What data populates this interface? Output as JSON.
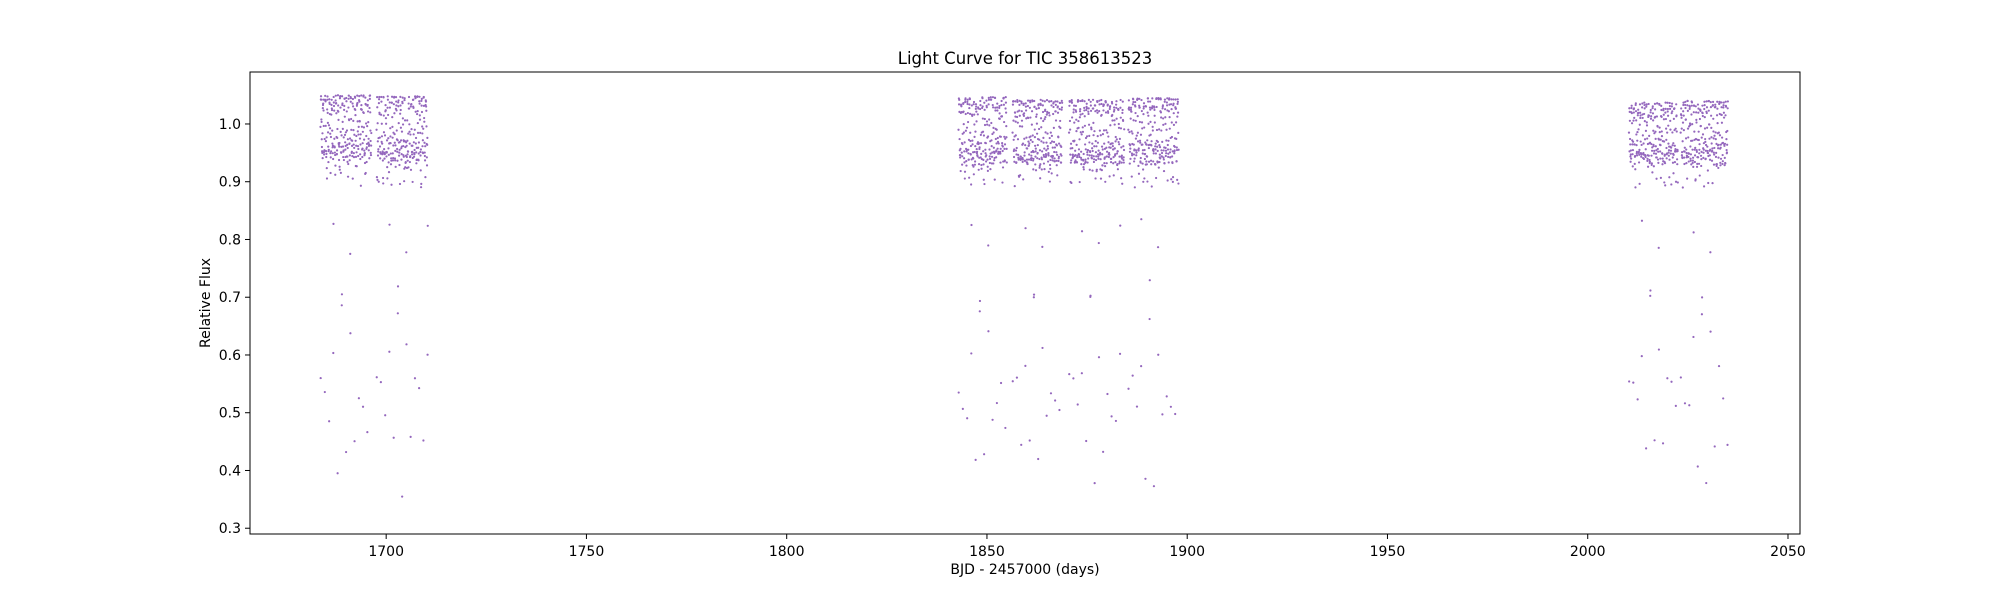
{
  "chart_data": {
    "type": "scatter",
    "title": "Light Curve for TIC 358613523",
    "xlabel": "BJD - 2457000 (days)",
    "ylabel": "Relative Flux",
    "xlim": [
      1666,
      2053
    ],
    "ylim": [
      0.29,
      1.09
    ],
    "xticks": [
      1700,
      1750,
      1800,
      1850,
      1900,
      1950,
      2000,
      2050
    ],
    "yticks": [
      0.3,
      0.4,
      0.5,
      0.6,
      0.7,
      0.8,
      0.9,
      1.0
    ],
    "ytick_labels": [
      "0.3",
      "0.4",
      "0.5",
      "0.6",
      "0.7",
      "0.8",
      "0.9",
      "1.0"
    ],
    "grid": false,
    "series": [
      {
        "color": "#9467bd",
        "marker": "dot",
        "segments": [
          {
            "start": 1683.6,
            "end": 1696.3,
            "flux_min": 0.325,
            "flux_max": 1.05,
            "baseline": 0.995
          },
          {
            "start": 1697.6,
            "end": 1710.4,
            "flux_min": 0.325,
            "flux_max": 1.048,
            "baseline": 0.99
          },
          {
            "start": 1842.9,
            "end": 1855.0,
            "flux_min": 0.33,
            "flux_max": 1.047,
            "baseline": 0.99
          },
          {
            "start": 1856.4,
            "end": 1868.8,
            "flux_min": 0.33,
            "flux_max": 1.042,
            "baseline": 0.985
          },
          {
            "start": 1870.5,
            "end": 1884.3,
            "flux_min": 0.328,
            "flux_max": 1.042,
            "baseline": 0.985
          },
          {
            "start": 1885.3,
            "end": 1897.9,
            "flux_min": 0.33,
            "flux_max": 1.045,
            "baseline": 0.99
          },
          {
            "start": 2010.3,
            "end": 2022.5,
            "flux_min": 0.34,
            "flux_max": 1.037,
            "baseline": 0.985
          },
          {
            "start": 2023.2,
            "end": 2035.0,
            "flux_min": 0.337,
            "flux_max": 1.04,
            "baseline": 0.985
          }
        ]
      }
    ]
  }
}
